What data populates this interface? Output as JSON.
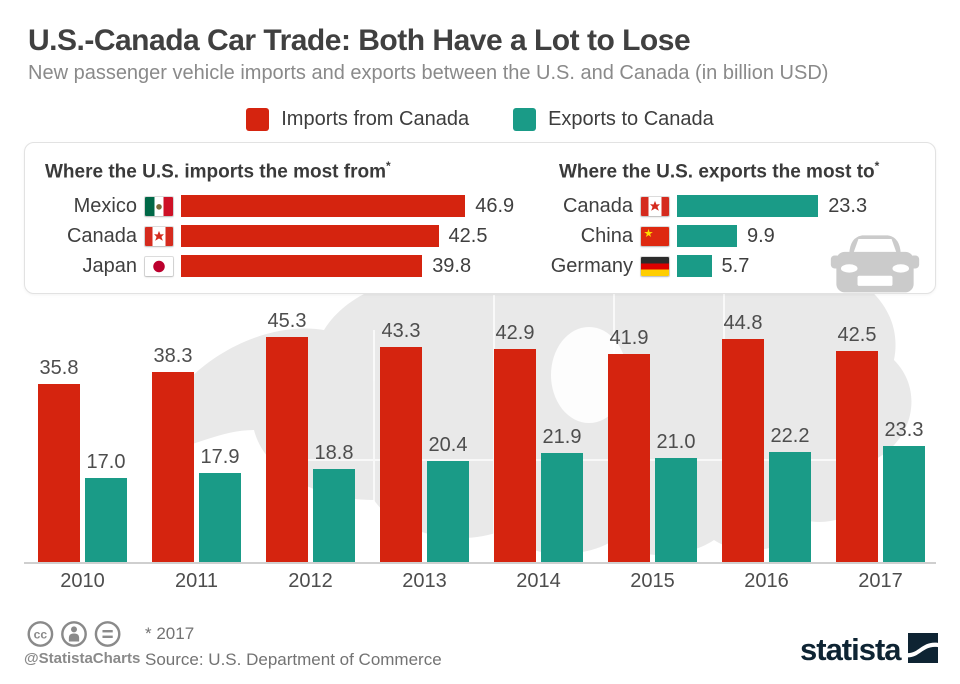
{
  "header": {
    "title": "U.S.-Canada Car Trade: Both Have a Lot to Lose",
    "subtitle": "New passenger vehicle imports and exports between the U.S. and Canada (in billion USD)"
  },
  "legend": {
    "items": [
      {
        "label": "Imports from Canada",
        "color": "#d5240f"
      },
      {
        "label": "Exports to Canada",
        "color": "#1a9b87"
      }
    ]
  },
  "colors": {
    "imports": "#d5240f",
    "exports": "#1a9b87",
    "title_text": "#404040",
    "muted_text": "#8a8a8a",
    "label_text": "#4d4d4d",
    "map": "#e9e9e9",
    "brand_navy": "#0e2433"
  },
  "footnote_marker": "*",
  "chart_data": [
    {
      "type": "bar",
      "orientation": "horizontal",
      "title": "Where the U.S. imports the most from",
      "categories": [
        "Mexico",
        "Canada",
        "Japan"
      ],
      "values": [
        46.9,
        42.5,
        39.8
      ],
      "flags": [
        "mexico",
        "canada",
        "japan"
      ],
      "color": "#d5240f",
      "xlim": [
        0,
        50
      ],
      "grid": false,
      "unit": "billion USD"
    },
    {
      "type": "bar",
      "orientation": "horizontal",
      "title": "Where the U.S. exports the most to",
      "categories": [
        "Canada",
        "China",
        "Germany"
      ],
      "values": [
        23.3,
        9.9,
        5.7
      ],
      "flags": [
        "canada",
        "china",
        "germany"
      ],
      "color": "#1a9b87",
      "xlim": [
        0,
        50
      ],
      "grid": false,
      "unit": "billion USD"
    },
    {
      "type": "bar",
      "orientation": "vertical",
      "title": "",
      "categories": [
        "2010",
        "2011",
        "2012",
        "2013",
        "2014",
        "2015",
        "2016",
        "2017"
      ],
      "series": [
        {
          "name": "Imports from Canada",
          "color": "#d5240f",
          "values": [
            35.8,
            38.3,
            45.3,
            43.3,
            42.9,
            41.9,
            44.8,
            42.5
          ]
        },
        {
          "name": "Exports to Canada",
          "color": "#1a9b87",
          "values": [
            17.0,
            17.9,
            18.8,
            20.4,
            21.9,
            21.0,
            22.2,
            23.3
          ]
        }
      ],
      "ylim": [
        0,
        50
      ],
      "grid": false,
      "legend_position": "top",
      "unit": "billion USD"
    }
  ],
  "footer": {
    "handle": "@StatistaCharts",
    "footnote": "* 2017",
    "source": "Source: U.S. Department of Commerce",
    "brand": "statista"
  },
  "icons": {
    "cc": "cc-license-icon",
    "cc_by": "cc-attribution-icon",
    "cc_nd": "cc-no-derivatives-icon",
    "car": "car-icon",
    "brand_square": "statista-logo-square"
  }
}
